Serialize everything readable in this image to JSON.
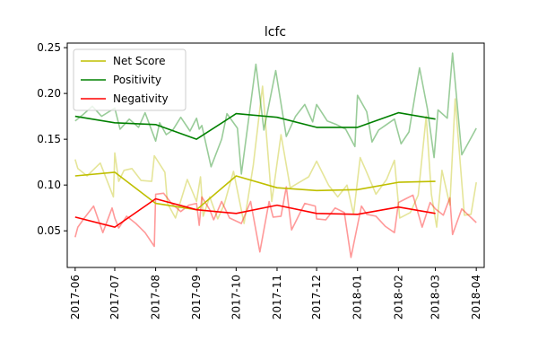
{
  "chart_data": {
    "type": "line",
    "title": "lcfc",
    "xlabel": "",
    "ylabel": "",
    "xlim": [
      "2017-05-26",
      "2018-04-07"
    ],
    "ylim": [
      0.01,
      0.255
    ],
    "yticks": [
      0.05,
      0.1,
      0.15,
      0.2,
      0.25
    ],
    "ytick_labels": [
      "0.05",
      "0.10",
      "0.15",
      "0.20",
      "0.25"
    ],
    "xticks": [
      "2017-06-01",
      "2017-07-01",
      "2017-08-01",
      "2017-09-01",
      "2017-10-01",
      "2017-11-01",
      "2017-12-01",
      "2018-01-01",
      "2018-02-01",
      "2018-03-01",
      "2018-04-01"
    ],
    "xtick_labels": [
      "2017-06",
      "2017-07",
      "2017-08",
      "2017-09",
      "2017-10",
      "2017-11",
      "2017-12",
      "2018-01",
      "2018-02",
      "2018-03",
      "2018-04"
    ],
    "grid": false,
    "legend_position": "top-left",
    "legend": [
      {
        "label": "Net Score",
        "color": "#bfbf00"
      },
      {
        "label": "Positivity",
        "color": "#008000"
      },
      {
        "label": "Negativity",
        "color": "#ff0000"
      }
    ],
    "raw_series": [
      {
        "name": "Net Score raw",
        "color": "#bfbf00",
        "opacity": 0.4,
        "points": [
          [
            "2017-06-01",
            0.128
          ],
          [
            "2017-06-03",
            0.118
          ],
          [
            "2017-06-10",
            0.11
          ],
          [
            "2017-06-20",
            0.124
          ],
          [
            "2017-06-30",
            0.087
          ],
          [
            "2017-07-01",
            0.135
          ],
          [
            "2017-07-04",
            0.104
          ],
          [
            "2017-07-08",
            0.116
          ],
          [
            "2017-07-14",
            0.118
          ],
          [
            "2017-07-21",
            0.105
          ],
          [
            "2017-07-29",
            0.104
          ],
          [
            "2017-07-31",
            0.132
          ],
          [
            "2017-08-08",
            0.114
          ],
          [
            "2017-08-10",
            0.08
          ],
          [
            "2017-08-16",
            0.064
          ],
          [
            "2017-08-25",
            0.106
          ],
          [
            "2017-09-01",
            0.082
          ],
          [
            "2017-09-04",
            0.109
          ],
          [
            "2017-09-06",
            0.066
          ],
          [
            "2017-09-11",
            0.087
          ],
          [
            "2017-09-17",
            0.063
          ],
          [
            "2017-09-22",
            0.079
          ],
          [
            "2017-09-29",
            0.115
          ],
          [
            "2017-10-07",
            0.058
          ],
          [
            "2017-10-14",
            0.122
          ],
          [
            "2017-10-21",
            0.208
          ],
          [
            "2017-10-28",
            0.082
          ],
          [
            "2017-11-04",
            0.155
          ],
          [
            "2017-11-11",
            0.097
          ],
          [
            "2017-11-18",
            0.103
          ],
          [
            "2017-11-25",
            0.109
          ],
          [
            "2017-12-01",
            0.126
          ],
          [
            "2017-12-10",
            0.1
          ],
          [
            "2017-12-17",
            0.087
          ],
          [
            "2017-12-24",
            0.1
          ],
          [
            "2017-12-29",
            0.068
          ],
          [
            "2018-01-03",
            0.13
          ],
          [
            "2018-01-07",
            0.117
          ],
          [
            "2018-01-15",
            0.09
          ],
          [
            "2018-01-23",
            0.106
          ],
          [
            "2018-01-29",
            0.127
          ],
          [
            "2018-02-02",
            0.064
          ],
          [
            "2018-02-10",
            0.07
          ],
          [
            "2018-02-16",
            0.089
          ],
          [
            "2018-02-22",
            0.175
          ],
          [
            "2018-02-26",
            0.09
          ],
          [
            "2018-03-02",
            0.054
          ],
          [
            "2018-03-06",
            0.116
          ],
          [
            "2018-03-12",
            0.078
          ],
          [
            "2018-03-16",
            0.194
          ],
          [
            "2018-03-23",
            0.067
          ],
          [
            "2018-03-28",
            0.068
          ],
          [
            "2018-04-01",
            0.103
          ]
        ]
      },
      {
        "name": "Positivity raw",
        "color": "#008000",
        "opacity": 0.4,
        "points": [
          [
            "2017-06-01",
            0.17
          ],
          [
            "2017-06-07",
            0.177
          ],
          [
            "2017-06-14",
            0.186
          ],
          [
            "2017-06-21",
            0.175
          ],
          [
            "2017-07-01",
            0.184
          ],
          [
            "2017-07-05",
            0.161
          ],
          [
            "2017-07-12",
            0.172
          ],
          [
            "2017-07-19",
            0.163
          ],
          [
            "2017-07-24",
            0.179
          ],
          [
            "2017-08-01",
            0.148
          ],
          [
            "2017-08-04",
            0.168
          ],
          [
            "2017-08-09",
            0.155
          ],
          [
            "2017-08-14",
            0.16
          ],
          [
            "2017-08-20",
            0.174
          ],
          [
            "2017-08-27",
            0.159
          ],
          [
            "2017-09-01",
            0.173
          ],
          [
            "2017-09-03",
            0.161
          ],
          [
            "2017-09-05",
            0.165
          ],
          [
            "2017-09-12",
            0.12
          ],
          [
            "2017-09-20",
            0.15
          ],
          [
            "2017-09-24",
            0.178
          ],
          [
            "2017-10-02",
            0.162
          ],
          [
            "2017-10-05",
            0.112
          ],
          [
            "2017-10-16",
            0.232
          ],
          [
            "2017-10-22",
            0.16
          ],
          [
            "2017-10-31",
            0.225
          ],
          [
            "2017-11-08",
            0.153
          ],
          [
            "2017-11-15",
            0.175
          ],
          [
            "2017-11-22",
            0.188
          ],
          [
            "2017-11-28",
            0.169
          ],
          [
            "2017-12-01",
            0.188
          ],
          [
            "2017-12-09",
            0.17
          ],
          [
            "2017-12-16",
            0.166
          ],
          [
            "2017-12-23",
            0.161
          ],
          [
            "2017-12-30",
            0.142
          ],
          [
            "2018-01-01",
            0.198
          ],
          [
            "2018-01-08",
            0.18
          ],
          [
            "2018-01-12",
            0.147
          ],
          [
            "2018-01-17",
            0.16
          ],
          [
            "2018-01-22",
            0.165
          ],
          [
            "2018-01-29",
            0.172
          ],
          [
            "2018-02-03",
            0.145
          ],
          [
            "2018-02-09",
            0.158
          ],
          [
            "2018-02-17",
            0.228
          ],
          [
            "2018-02-23",
            0.183
          ],
          [
            "2018-02-28",
            0.13
          ],
          [
            "2018-03-03",
            0.182
          ],
          [
            "2018-03-10",
            0.173
          ],
          [
            "2018-03-14",
            0.244
          ],
          [
            "2018-03-21",
            0.133
          ],
          [
            "2018-04-01",
            0.162
          ]
        ]
      },
      {
        "name": "Negativity raw",
        "color": "#ff0000",
        "opacity": 0.4,
        "points": [
          [
            "2017-06-01",
            0.043
          ],
          [
            "2017-06-03",
            0.054
          ],
          [
            "2017-06-08",
            0.064
          ],
          [
            "2017-06-15",
            0.077
          ],
          [
            "2017-06-22",
            0.048
          ],
          [
            "2017-06-29",
            0.075
          ],
          [
            "2017-07-01",
            0.064
          ],
          [
            "2017-07-04",
            0.053
          ],
          [
            "2017-07-10",
            0.066
          ],
          [
            "2017-07-17",
            0.058
          ],
          [
            "2017-07-24",
            0.048
          ],
          [
            "2017-07-31",
            0.033
          ],
          [
            "2017-08-01",
            0.09
          ],
          [
            "2017-08-07",
            0.091
          ],
          [
            "2017-08-13",
            0.08
          ],
          [
            "2017-08-20",
            0.071
          ],
          [
            "2017-08-26",
            0.078
          ],
          [
            "2017-09-01",
            0.08
          ],
          [
            "2017-09-03",
            0.056
          ],
          [
            "2017-09-05",
            0.087
          ],
          [
            "2017-09-11",
            0.073
          ],
          [
            "2017-09-14",
            0.062
          ],
          [
            "2017-09-20",
            0.082
          ],
          [
            "2017-09-26",
            0.064
          ],
          [
            "2017-10-05",
            0.058
          ],
          [
            "2017-10-12",
            0.082
          ],
          [
            "2017-10-19",
            0.027
          ],
          [
            "2017-10-26",
            0.082
          ],
          [
            "2017-10-29",
            0.065
          ],
          [
            "2017-11-04",
            0.066
          ],
          [
            "2017-11-08",
            0.098
          ],
          [
            "2017-11-12",
            0.051
          ],
          [
            "2017-11-22",
            0.08
          ],
          [
            "2017-11-30",
            0.077
          ],
          [
            "2017-12-01",
            0.063
          ],
          [
            "2017-12-08",
            0.062
          ],
          [
            "2017-12-15",
            0.075
          ],
          [
            "2017-12-22",
            0.07
          ],
          [
            "2017-12-27",
            0.021
          ],
          [
            "2018-01-04",
            0.077
          ],
          [
            "2018-01-08",
            0.068
          ],
          [
            "2018-01-15",
            0.066
          ],
          [
            "2018-01-22",
            0.055
          ],
          [
            "2018-01-29",
            0.048
          ],
          [
            "2018-02-01",
            0.081
          ],
          [
            "2018-02-08",
            0.086
          ],
          [
            "2018-02-12",
            0.089
          ],
          [
            "2018-02-19",
            0.054
          ],
          [
            "2018-02-25",
            0.081
          ],
          [
            "2018-03-01",
            0.074
          ],
          [
            "2018-03-07",
            0.067
          ],
          [
            "2018-03-12",
            0.086
          ],
          [
            "2018-03-14",
            0.046
          ],
          [
            "2018-03-21",
            0.074
          ],
          [
            "2018-04-01",
            0.059
          ]
        ]
      }
    ],
    "series": [
      {
        "name": "Net Score",
        "color": "#bfbf00",
        "points": [
          [
            "2017-06-01",
            0.11
          ],
          [
            "2017-07-01",
            0.114
          ],
          [
            "2017-08-01",
            0.08
          ],
          [
            "2017-09-01",
            0.073
          ],
          [
            "2017-10-01",
            0.11
          ],
          [
            "2017-11-01",
            0.097
          ],
          [
            "2017-12-01",
            0.094
          ],
          [
            "2018-01-01",
            0.095
          ],
          [
            "2018-02-01",
            0.103
          ],
          [
            "2018-03-01",
            0.104
          ]
        ]
      },
      {
        "name": "Positivity",
        "color": "#008000",
        "points": [
          [
            "2017-06-01",
            0.175
          ],
          [
            "2017-07-01",
            0.168
          ],
          [
            "2017-08-01",
            0.166
          ],
          [
            "2017-09-01",
            0.15
          ],
          [
            "2017-10-01",
            0.178
          ],
          [
            "2017-11-01",
            0.174
          ],
          [
            "2017-12-01",
            0.163
          ],
          [
            "2018-01-01",
            0.163
          ],
          [
            "2018-02-01",
            0.179
          ],
          [
            "2018-03-01",
            0.172
          ]
        ]
      },
      {
        "name": "Negativity",
        "color": "#ff0000",
        "points": [
          [
            "2017-06-01",
            0.065
          ],
          [
            "2017-07-01",
            0.054
          ],
          [
            "2017-08-01",
            0.085
          ],
          [
            "2017-09-01",
            0.073
          ],
          [
            "2017-10-01",
            0.069
          ],
          [
            "2017-11-01",
            0.078
          ],
          [
            "2017-12-01",
            0.069
          ],
          [
            "2018-01-01",
            0.068
          ],
          [
            "2018-02-01",
            0.076
          ],
          [
            "2018-03-01",
            0.069
          ]
        ]
      }
    ]
  }
}
